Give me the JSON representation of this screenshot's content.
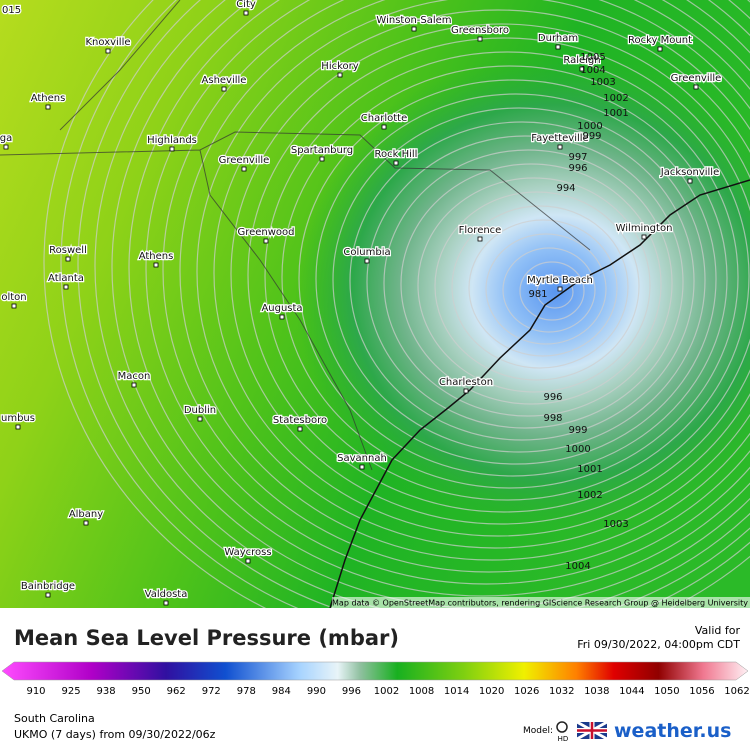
{
  "map": {
    "corner_label": "015",
    "cities": [
      "City",
      "Knoxville",
      "Winston-Salem",
      "Greensboro",
      "Durham",
      "Rocky Mount",
      "Raleigh",
      "Asheville",
      "Hickory",
      "Greenville",
      "Athens",
      "Charlotte",
      "Fayetteville",
      "ga",
      "Highlands",
      "Spartanburg",
      "Rock Hill",
      "Greenville",
      "Jacksonville",
      "Florence",
      "Wilmington",
      "Greenwood",
      "Columbia",
      "Roswell",
      "Athens",
      "Myrtle Beach",
      "Atlanta",
      "olton",
      "Augusta",
      "Macon",
      "Charleston",
      "umbus",
      "Dublin",
      "Statesboro",
      "Savannah",
      "Albany",
      "Waycross",
      "Bainbridge",
      "Valdosta"
    ],
    "isobar_labels": [
      "1005",
      "1004",
      "1003",
      "1002",
      "1001",
      "1000",
      "999",
      "997",
      "996",
      "994",
      "981",
      "996",
      "998",
      "999",
      "1000",
      "1001",
      "1002",
      "1003",
      "1004"
    ],
    "attribution": "Map data © OpenStreetMap contributors, rendering GIScience Research Group @ Heidelberg University"
  },
  "legend": {
    "title": "Mean Sea Level Pressure (mbar)",
    "valid_label": "Valid for",
    "valid_time": "Fri 09/30/2022, 04:00pm CDT",
    "scale": [
      910,
      925,
      938,
      950,
      962,
      972,
      978,
      984,
      990,
      996,
      1002,
      1008,
      1014,
      1020,
      1026,
      1032,
      1038,
      1044,
      1050,
      1056,
      1062
    ],
    "region": "South Carolina",
    "model_run": "UKMO (7 days) from 09/30/2022/06z",
    "model_label": "Model:",
    "model_badge": "HD",
    "brand": "weather.us"
  }
}
